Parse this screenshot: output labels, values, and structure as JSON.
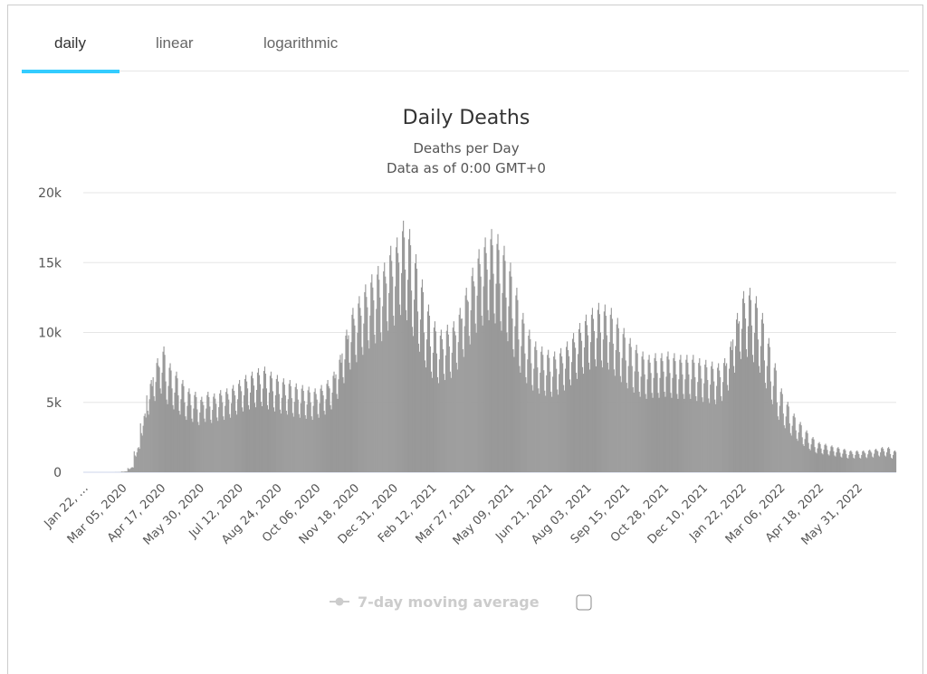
{
  "tabs": [
    {
      "label": "daily",
      "active": true
    },
    {
      "label": "linear"
    },
    {
      "label": "logarithmic"
    }
  ],
  "accent": "#33ccff",
  "chart_data": {
    "type": "bar",
    "title": "Daily Deaths",
    "subtitle1": "Deaths per Day",
    "subtitle2": "Data as of 0:00 GMT+0",
    "ylim": [
      0,
      20000
    ],
    "yticks": [
      "0",
      "5k",
      "10k",
      "15k",
      "20k"
    ],
    "ytick_values": [
      0,
      5000,
      10000,
      15000,
      20000
    ],
    "start_date": "Jan 22, 2020",
    "xtick_interval_days": 43,
    "xticks": [
      "Jan 22, …",
      "Mar 05, 2020",
      "Apr 17, 2020",
      "May 30, 2020",
      "Jul 12, 2020",
      "Aug 24, 2020",
      "Oct 06, 2020",
      "Nov 18, 2020",
      "Dec 31, 2020",
      "Feb 12, 2021",
      "Mar 27, 2021",
      "May 09, 2021",
      "Jun 21, 2021",
      "Aug 03, 2021",
      "Sep 15, 2021",
      "Oct 28, 2021",
      "Dec 10, 2021",
      "Jan 22, 2022",
      "Mar 06, 2022",
      "Apr 18, 2022",
      "May 31, 2022"
    ],
    "weekly_avg_daily_deaths": [
      0,
      0,
      0,
      0,
      0,
      5,
      50,
      300,
      1500,
      3500,
      5500,
      6800,
      7500,
      6500,
      6000,
      5500,
      5000,
      4800,
      4500,
      4800,
      4700,
      4900,
      5000,
      5200,
      5500,
      5800,
      6000,
      6200,
      6300,
      6000,
      5800,
      5600,
      5500,
      5300,
      5200,
      5100,
      5000,
      5200,
      5500,
      6000,
      7000,
      8500,
      9800,
      10500,
      11200,
      11800,
      12300,
      12500,
      13500,
      14000,
      15000,
      14500,
      13000,
      11500,
      10000,
      9000,
      8500,
      8800,
      9000,
      9800,
      11000,
      12200,
      13300,
      14000,
      14500,
      14200,
      13500,
      12500,
      11000,
      9500,
      8500,
      7800,
      7500,
      7300,
      7200,
      7400,
      7800,
      8300,
      8900,
      9400,
      9800,
      10100,
      10000,
      9800,
      9200,
      8600,
      8000,
      7600,
      7200,
      7000,
      7100,
      7100,
      7200,
      7100,
      7000,
      7000,
      7000,
      6800,
      6700,
      6600,
      6500,
      6800,
      7800,
      9500,
      10800,
      11000,
      10500,
      9500,
      8000,
      6500,
      5000,
      4200,
      3500,
      3000,
      2500,
      2100,
      1800,
      1700,
      1600,
      1500,
      1400,
      1300,
      1300,
      1300,
      1350,
      1400,
      1500,
      1500,
      1300
    ],
    "weekday_factor": [
      1.0,
      0.8,
      0.75,
      0.95,
      1.15,
      1.2,
      1.12
    ],
    "bar_color": "#999999",
    "legend": {
      "label": "7-day moving average",
      "enabled": false,
      "placement": "bottom"
    }
  }
}
